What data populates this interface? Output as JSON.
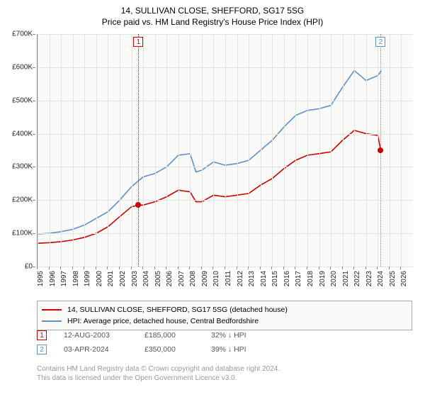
{
  "title": {
    "line1": "14, SULLIVAN CLOSE, SHEFFORD, SG17 5SG",
    "line2": "Price paid vs. HM Land Registry's House Price Index (HPI)",
    "fontsize": 12,
    "color": "#000000"
  },
  "chart": {
    "type": "line",
    "background_color": "#fafaf8",
    "grid_color": "#e4e4e0",
    "axis_color": "#888888",
    "xlim": [
      1995,
      2027
    ],
    "ylim": [
      0,
      700000
    ],
    "y_ticks": [
      0,
      100000,
      200000,
      300000,
      400000,
      500000,
      600000,
      700000
    ],
    "y_tick_labels": [
      "£0",
      "£100K",
      "£200K",
      "£300K",
      "£400K",
      "£500K",
      "£600K",
      "£700K"
    ],
    "x_ticks": [
      1995,
      1996,
      1997,
      1998,
      1999,
      2000,
      2001,
      2002,
      2003,
      2004,
      2005,
      2006,
      2007,
      2008,
      2009,
      2010,
      2011,
      2012,
      2013,
      2014,
      2015,
      2016,
      2017,
      2018,
      2019,
      2020,
      2021,
      2022,
      2023,
      2024,
      2025,
      2026
    ],
    "label_fontsize": 10,
    "series": [
      {
        "name": "price_paid",
        "color": "#cc0000",
        "line_width": 1.6,
        "data": [
          [
            1995,
            70000
          ],
          [
            1996,
            72000
          ],
          [
            1997,
            75000
          ],
          [
            1998,
            80000
          ],
          [
            1999,
            88000
          ],
          [
            2000,
            100000
          ],
          [
            2001,
            120000
          ],
          [
            2002,
            150000
          ],
          [
            2003,
            180000
          ],
          [
            2003.6,
            185000
          ],
          [
            2004,
            185000
          ],
          [
            2005,
            195000
          ],
          [
            2006,
            210000
          ],
          [
            2007,
            230000
          ],
          [
            2008,
            225000
          ],
          [
            2008.5,
            195000
          ],
          [
            2009,
            195000
          ],
          [
            2010,
            215000
          ],
          [
            2011,
            210000
          ],
          [
            2012,
            215000
          ],
          [
            2013,
            220000
          ],
          [
            2014,
            245000
          ],
          [
            2015,
            265000
          ],
          [
            2016,
            295000
          ],
          [
            2017,
            320000
          ],
          [
            2018,
            335000
          ],
          [
            2019,
            340000
          ],
          [
            2020,
            345000
          ],
          [
            2021,
            380000
          ],
          [
            2022,
            410000
          ],
          [
            2023,
            400000
          ],
          [
            2024,
            395000
          ],
          [
            2024.25,
            350000
          ]
        ]
      },
      {
        "name": "hpi",
        "color": "#6090c8",
        "line_width": 1.6,
        "data": [
          [
            1995,
            98000
          ],
          [
            1996,
            100000
          ],
          [
            1997,
            105000
          ],
          [
            1998,
            112000
          ],
          [
            1999,
            125000
          ],
          [
            2000,
            145000
          ],
          [
            2001,
            165000
          ],
          [
            2002,
            200000
          ],
          [
            2003,
            240000
          ],
          [
            2004,
            270000
          ],
          [
            2005,
            280000
          ],
          [
            2006,
            300000
          ],
          [
            2007,
            335000
          ],
          [
            2008,
            340000
          ],
          [
            2008.5,
            285000
          ],
          [
            2009,
            290000
          ],
          [
            2010,
            315000
          ],
          [
            2011,
            305000
          ],
          [
            2012,
            310000
          ],
          [
            2013,
            320000
          ],
          [
            2014,
            350000
          ],
          [
            2015,
            380000
          ],
          [
            2016,
            420000
          ],
          [
            2017,
            455000
          ],
          [
            2018,
            470000
          ],
          [
            2019,
            475000
          ],
          [
            2020,
            485000
          ],
          [
            2021,
            540000
          ],
          [
            2022,
            590000
          ],
          [
            2023,
            560000
          ],
          [
            2024,
            575000
          ],
          [
            2024.3,
            590000
          ]
        ]
      }
    ],
    "vlines": [
      {
        "x": 2003.6,
        "color": "#cc0000",
        "label": "1"
      },
      {
        "x": 2024.25,
        "color": "#6090c8",
        "label": "2"
      }
    ],
    "points": [
      {
        "x": 2003.6,
        "y": 185000,
        "color": "#cc0000"
      },
      {
        "x": 2024.25,
        "y": 350000,
        "color": "#cc0000"
      }
    ]
  },
  "legend": {
    "items": [
      {
        "color": "#cc0000",
        "label": "14, SULLIVAN CLOSE, SHEFFORD, SG17 5SG (detached house)"
      },
      {
        "color": "#6090c8",
        "label": "HPI: Average price, detached house, Central Bedfordshire"
      }
    ]
  },
  "events": [
    {
      "marker": "1",
      "marker_color": "#cc0000",
      "date": "12-AUG-2003",
      "price": "£185,000",
      "delta": "32% ↓ HPI"
    },
    {
      "marker": "2",
      "marker_color": "#6090c8",
      "date": "03-APR-2024",
      "price": "£350,000",
      "delta": "39% ↓ HPI"
    }
  ],
  "footer": {
    "line1": "Contains HM Land Registry data © Crown copyright and database right 2024.",
    "line2": "This data is licensed under the Open Government Licence v3.0."
  }
}
